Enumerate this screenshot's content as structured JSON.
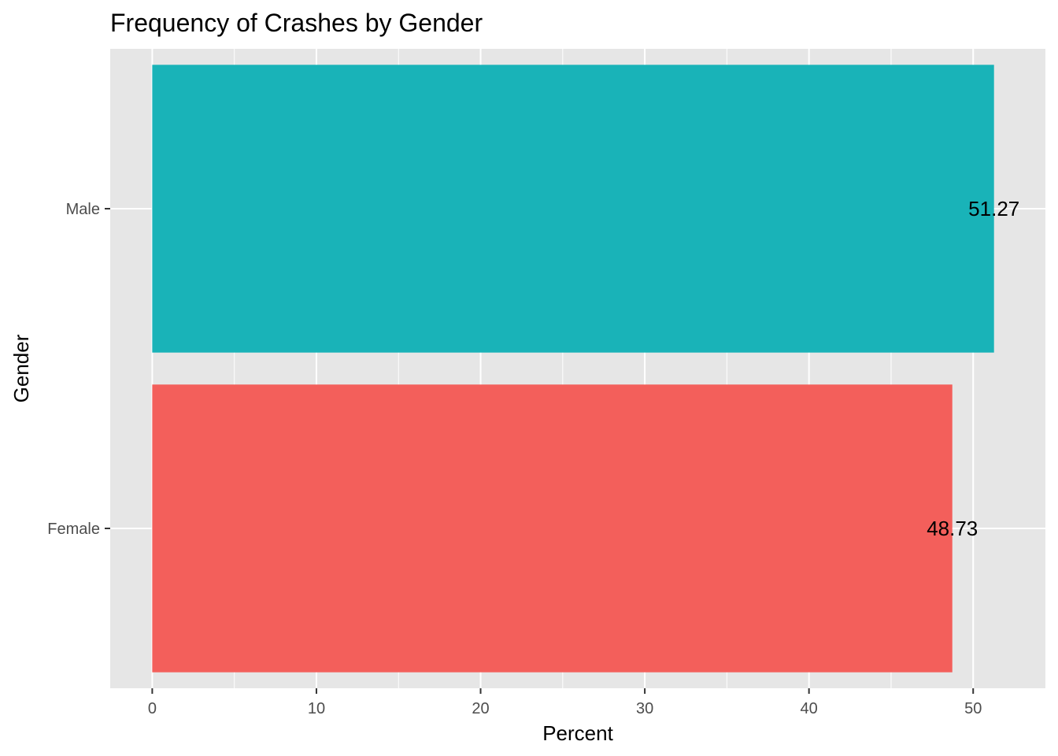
{
  "chart_data": {
    "type": "bar",
    "orientation": "horizontal",
    "title": "Frequency of Crashes by Gender",
    "xlabel": "Percent",
    "ylabel": "Gender",
    "categories": [
      "Female",
      "Male"
    ],
    "values": [
      48.73,
      51.27
    ],
    "data_labels": [
      "48.73",
      "51.27"
    ],
    "bar_colors": [
      "#F35F5B",
      "#19B3B8"
    ],
    "xlim": [
      -2.56,
      54.4
    ],
    "xticks": [
      0,
      10,
      20,
      30,
      40,
      50
    ],
    "xtick_labels": [
      "0",
      "10",
      "20",
      "30",
      "40",
      "50"
    ],
    "grid": true,
    "legend": "none",
    "panel_background": "#E6E6E6",
    "grid_color": "#FFFFFF"
  }
}
